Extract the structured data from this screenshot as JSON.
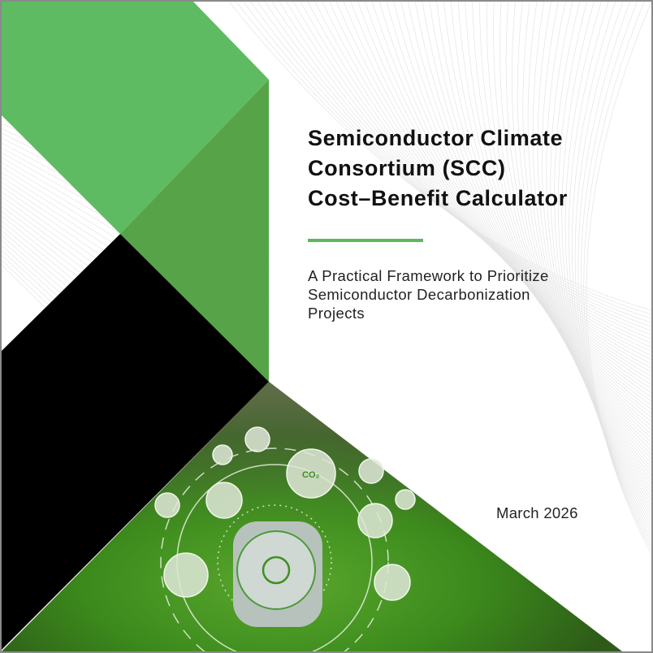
{
  "cover": {
    "title_lines": [
      "Semiconductor Climate",
      "Consortium (SCC)",
      "Cost–Benefit Calculator"
    ],
    "subtitle_lines": [
      "A Practical Framework to Prioritize",
      "Semiconductor Decarbonization",
      "Projects"
    ],
    "date": "March 2026",
    "image_icons": [
      "co2-reduction-icon",
      "factory-icon",
      "lightbulb-leaf-icon",
      "recycle-icon",
      "footprint-icon",
      "earth-cycle-icon",
      "gear-recycle-icon",
      "wind-turbine-icon"
    ],
    "colors": {
      "light_green": "#5fbb62",
      "dark_green": "#56a447",
      "black": "#000000",
      "rule_green": "#5cb85c",
      "moss_green": "#3f8f22"
    }
  }
}
